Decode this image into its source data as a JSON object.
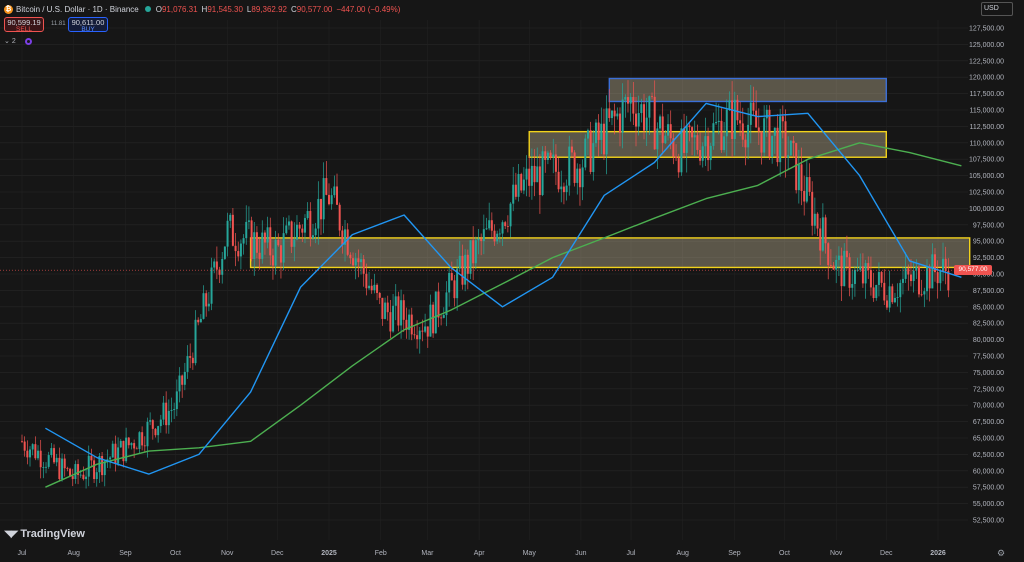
{
  "header": {
    "symbol": "Bitcoin / U.S. Dollar · 1D · Binance",
    "open_label": "O",
    "open_value": "91,076.31",
    "high_label": "H",
    "high_value": "91,545.30",
    "low_label": "L",
    "low_value": "89,362.92",
    "close_label": "C",
    "close_value": "90,577.00",
    "change": "−447.00 (−0.49%)"
  },
  "trade": {
    "sell_price": "90,599.19",
    "sell_label": "SELL",
    "spread": "11.81",
    "buy_price": "90,611.00",
    "buy_label": "BUY"
  },
  "indicators": {
    "count": "2"
  },
  "currency": "USD",
  "branding": {
    "logo_text": "TradingView"
  },
  "price_badge": "90,577.00",
  "colors": {
    "background": "#161616",
    "up": "#26a69a",
    "down": "#ef5350",
    "ma_fast": "#2196f3",
    "ma_slow": "#4caf50",
    "zone_yellow": "#f2d21b",
    "zone_blue": "#3b6fd8"
  },
  "chart_data": {
    "type": "candlestick",
    "title": "Bitcoin / U.S. Dollar · 1D · Binance",
    "ylim": [
      51500,
      128500
    ],
    "x_ticks": [
      "Jul",
      "Aug",
      "Sep",
      "Oct",
      "Nov",
      "Dec",
      "2025",
      "Feb",
      "Mar",
      "Apr",
      "May",
      "Jun",
      "Jul",
      "Aug",
      "Sep",
      "Oct",
      "Nov",
      "Dec",
      "2026"
    ],
    "y_ticks": [
      "127,500.00",
      "125,000.00",
      "122,500.00",
      "120,000.00",
      "117,500.00",
      "115,000.00",
      "112,500.00",
      "110,000.00",
      "107,500.00",
      "105,000.00",
      "102,500.00",
      "100,000.00",
      "97,500.00",
      "95,000.00",
      "92,500.00",
      "90,000.00",
      "87,500.00",
      "85,000.00",
      "82,500.00",
      "80,000.00",
      "77,500.00",
      "75,000.00",
      "72,500.00",
      "70,000.00",
      "67,500.00",
      "65,000.00",
      "62,500.00",
      "60,000.00",
      "57,500.00",
      "55,000.00",
      "52,500.00"
    ],
    "price_path": {
      "months": [
        "2024-07",
        "2024-08",
        "2024-09",
        "2024-10",
        "2024-11",
        "2024-12",
        "2025-01",
        "2025-02",
        "2025-03",
        "2025-04",
        "2025-05",
        "2025-06",
        "2025-07",
        "2025-08",
        "2025-09",
        "2025-10",
        "2025-11",
        "2025-12",
        "2026-01"
      ],
      "close": [
        64500,
        59000,
        63500,
        70000,
        96500,
        93500,
        102000,
        84500,
        82500,
        94200,
        104500,
        107000,
        116500,
        108500,
        114000,
        110000,
        91000,
        87800,
        90577
      ]
    },
    "moving_average_fast": [
      {
        "x": "2024-07",
        "y": 66500
      },
      {
        "x": "2024-08",
        "y": 62000
      },
      {
        "x": "2024-09",
        "y": 59500
      },
      {
        "x": "2024-10",
        "y": 62500
      },
      {
        "x": "2024-11",
        "y": 72000
      },
      {
        "x": "2024-12",
        "y": 88000
      },
      {
        "x": "2025-01",
        "y": 96000
      },
      {
        "x": "2025-02",
        "y": 99000
      },
      {
        "x": "2025-03",
        "y": 91000
      },
      {
        "x": "2025-04",
        "y": 85000
      },
      {
        "x": "2025-05",
        "y": 89500
      },
      {
        "x": "2025-06",
        "y": 102000
      },
      {
        "x": "2025-07",
        "y": 107000
      },
      {
        "x": "2025-08",
        "y": 116000
      },
      {
        "x": "2025-09",
        "y": 114000
      },
      {
        "x": "2025-10",
        "y": 114500
      },
      {
        "x": "2025-11",
        "y": 105000
      },
      {
        "x": "2025-12",
        "y": 92000
      },
      {
        "x": "2026-01",
        "y": 89500
      }
    ],
    "moving_average_slow": [
      {
        "x": "2024-07",
        "y": 57500
      },
      {
        "x": "2024-08",
        "y": 61000
      },
      {
        "x": "2024-09",
        "y": 63000
      },
      {
        "x": "2024-10",
        "y": 63500
      },
      {
        "x": "2024-11",
        "y": 64500
      },
      {
        "x": "2024-12",
        "y": 70000
      },
      {
        "x": "2025-01",
        "y": 76000
      },
      {
        "x": "2025-02",
        "y": 81500
      },
      {
        "x": "2025-03",
        "y": 84500
      },
      {
        "x": "2025-04",
        "y": 88500
      },
      {
        "x": "2025-05",
        "y": 92500
      },
      {
        "x": "2025-06",
        "y": 95500
      },
      {
        "x": "2025-07",
        "y": 98500
      },
      {
        "x": "2025-08",
        "y": 101500
      },
      {
        "x": "2025-09",
        "y": 103500
      },
      {
        "x": "2025-10",
        "y": 107500
      },
      {
        "x": "2025-11",
        "y": 110000
      },
      {
        "x": "2025-12",
        "y": 108500
      },
      {
        "x": "2026-01",
        "y": 106500
      }
    ],
    "zones": [
      {
        "color": "yellow",
        "from": "2024-11-15",
        "to": "2026-01-20",
        "low": 91000,
        "high": 95500
      },
      {
        "color": "yellow",
        "from": "2025-05-01",
        "to": "2025-12-01",
        "low": 107800,
        "high": 111700
      },
      {
        "color": "blue",
        "from": "2025-06-18",
        "to": "2025-12-01",
        "low": 116300,
        "high": 119800
      }
    ],
    "last_price": 90577.0
  }
}
